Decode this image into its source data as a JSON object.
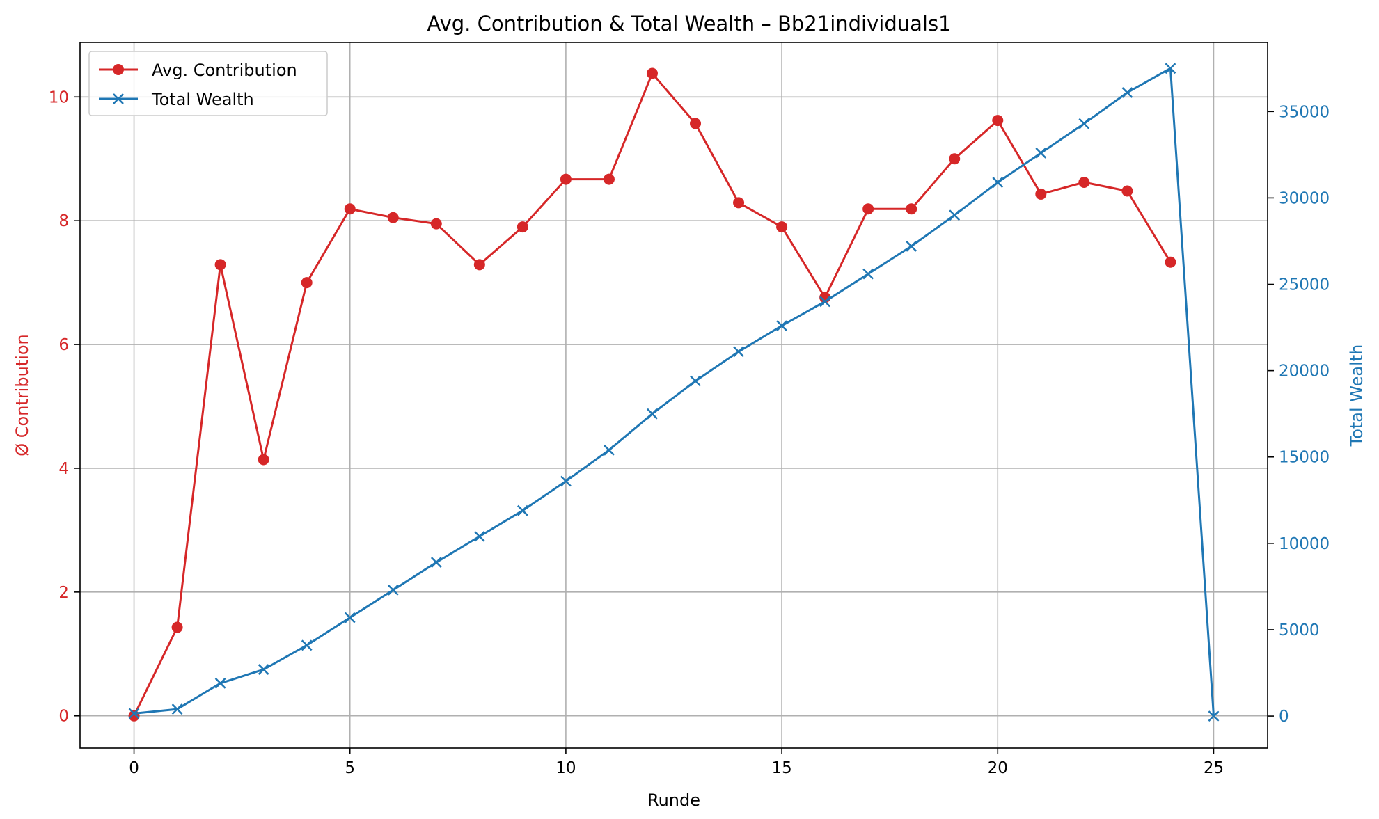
{
  "chart_data": {
    "type": "line",
    "title": "Avg. Contribution & Total Wealth – Bb21individuals1",
    "xlabel": "Runde",
    "ylabel_left": "Ø Contribution",
    "ylabel_right": "Total Wealth",
    "xlim": [
      -1.25,
      26.25
    ],
    "ylim_left": [
      -0.52,
      10.88
    ],
    "ylim_right": [
      -1850,
      39000
    ],
    "x_ticks": [
      0,
      5,
      10,
      15,
      20,
      25
    ],
    "y_left_ticks": [
      0,
      2,
      4,
      6,
      8,
      10
    ],
    "y_right_ticks": [
      0,
      5000,
      10000,
      15000,
      20000,
      25000,
      30000,
      35000
    ],
    "grid": true,
    "legend_position": "top-left",
    "series": [
      {
        "name": "Avg. Contribution",
        "axis": "left",
        "color": "#d62728",
        "marker": "circle",
        "x": [
          0,
          1,
          2,
          3,
          4,
          5,
          6,
          7,
          8,
          9,
          10,
          11,
          12,
          13,
          14,
          15,
          16,
          17,
          18,
          19,
          20,
          21,
          22,
          23,
          24
        ],
        "values": [
          0.0,
          1.43,
          7.29,
          4.14,
          7.0,
          8.19,
          8.05,
          7.95,
          7.29,
          7.9,
          8.67,
          8.67,
          10.38,
          9.57,
          8.29,
          7.9,
          6.76,
          8.19,
          8.19,
          9.0,
          9.62,
          8.43,
          8.62,
          8.48,
          7.33
        ]
      },
      {
        "name": "Total Wealth",
        "axis": "right",
        "color": "#1f77b4",
        "marker": "x",
        "x": [
          0,
          1,
          2,
          3,
          4,
          5,
          6,
          7,
          8,
          9,
          10,
          11,
          12,
          13,
          14,
          15,
          16,
          17,
          18,
          19,
          20,
          21,
          22,
          23,
          24,
          25
        ],
        "values": [
          150,
          400,
          1900,
          2700,
          4100,
          5700,
          7300,
          8900,
          10400,
          11900,
          13600,
          15400,
          17500,
          19400,
          21100,
          22600,
          24000,
          25600,
          27200,
          29000,
          30900,
          32600,
          34300,
          36100,
          37500,
          0
        ]
      }
    ]
  }
}
